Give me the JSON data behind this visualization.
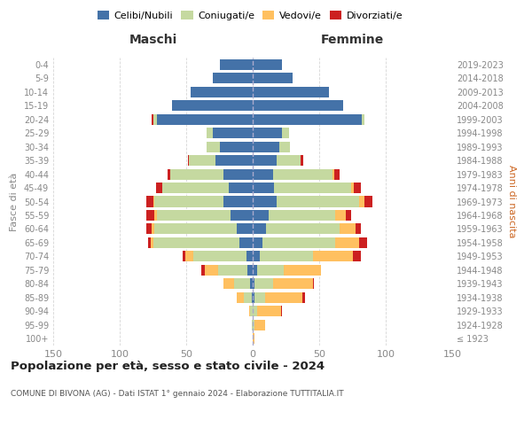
{
  "age_groups": [
    "100+",
    "95-99",
    "90-94",
    "85-89",
    "80-84",
    "75-79",
    "70-74",
    "65-69",
    "60-64",
    "55-59",
    "50-54",
    "45-49",
    "40-44",
    "35-39",
    "30-34",
    "25-29",
    "20-24",
    "15-19",
    "10-14",
    "5-9",
    "0-4"
  ],
  "birth_years": [
    "≤ 1923",
    "1924-1928",
    "1929-1933",
    "1934-1938",
    "1939-1943",
    "1944-1948",
    "1949-1953",
    "1954-1958",
    "1959-1963",
    "1964-1968",
    "1969-1973",
    "1974-1978",
    "1979-1983",
    "1984-1988",
    "1989-1993",
    "1994-1998",
    "1999-2003",
    "2004-2008",
    "2009-2013",
    "2014-2018",
    "2019-2023"
  ],
  "maschi": {
    "celibi": [
      0,
      0,
      0,
      1,
      2,
      4,
      5,
      10,
      12,
      17,
      22,
      18,
      22,
      28,
      25,
      30,
      72,
      61,
      47,
      30,
      25
    ],
    "coniugati": [
      0,
      1,
      2,
      6,
      12,
      22,
      40,
      65,
      62,
      55,
      52,
      50,
      40,
      20,
      10,
      5,
      3,
      0,
      0,
      0,
      0
    ],
    "vedovi": [
      0,
      0,
      1,
      5,
      8,
      10,
      6,
      2,
      2,
      2,
      1,
      0,
      0,
      0,
      0,
      0,
      0,
      0,
      0,
      0,
      0
    ],
    "divorziati": [
      0,
      0,
      0,
      0,
      0,
      3,
      2,
      2,
      4,
      6,
      5,
      5,
      2,
      1,
      0,
      0,
      1,
      0,
      0,
      0,
      0
    ]
  },
  "femmine": {
    "nubili": [
      0,
      0,
      0,
      1,
      1,
      3,
      5,
      7,
      10,
      12,
      18,
      16,
      15,
      18,
      20,
      22,
      82,
      68,
      57,
      30,
      22
    ],
    "coniugate": [
      0,
      1,
      3,
      8,
      14,
      20,
      40,
      55,
      55,
      50,
      62,
      58,
      45,
      18,
      8,
      5,
      2,
      0,
      0,
      0,
      0
    ],
    "vedove": [
      1,
      8,
      18,
      28,
      30,
      28,
      30,
      18,
      12,
      8,
      4,
      2,
      1,
      0,
      0,
      0,
      0,
      0,
      0,
      0,
      0
    ],
    "divorziate": [
      0,
      0,
      1,
      2,
      1,
      0,
      6,
      6,
      4,
      4,
      6,
      5,
      4,
      2,
      0,
      0,
      0,
      0,
      0,
      0,
      0
    ]
  },
  "colors": {
    "celibi": "#4472a8",
    "coniugati": "#c5d9a0",
    "vedovi": "#ffc060",
    "divorziati": "#cc2020"
  },
  "title": "Popolazione per età, sesso e stato civile - 2024",
  "subtitle": "COMUNE DI BIVONA (AG) - Dati ISTAT 1° gennaio 2024 - Elaborazione TUTTITALIA.IT",
  "ylabel_left": "Fasce di età",
  "ylabel_right": "Anni di nascita",
  "xlabel_maschi": "Maschi",
  "xlabel_femmine": "Femmine",
  "xlim": 150,
  "background_color": "#ffffff",
  "grid_color": "#cccccc"
}
